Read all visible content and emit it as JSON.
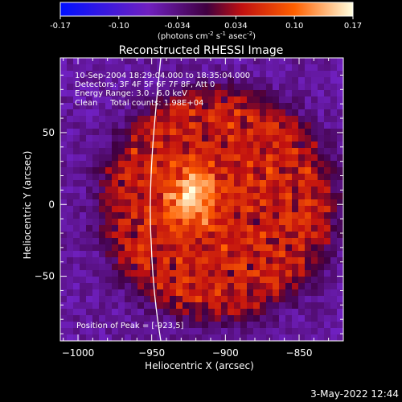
{
  "colorbar": {
    "ticks": [
      "-0.17",
      "-0.10",
      "-0.034",
      "0.034",
      "0.10",
      "0.17"
    ],
    "units_prefix": "(photons cm",
    "units_exp1": "-2",
    "units_mid1": " s",
    "units_exp2": "-1",
    "units_mid2": " asec",
    "units_exp3": "-2",
    "units_suffix": ")",
    "range": [
      -0.17,
      0.17
    ]
  },
  "chart_data": {
    "type": "heatmap",
    "title": "Reconstructed RHESSI Image",
    "xlabel": "Heliocentric X (arcsec)",
    "ylabel": "Heliocentric Y (arcsec)",
    "x_ticks": [
      "-1000",
      "-950",
      "-900",
      "-850"
    ],
    "x_tick_values": [
      -1000,
      -950,
      -900,
      -850
    ],
    "y_ticks": [
      "50",
      "0",
      "-50"
    ],
    "y_tick_values": [
      50,
      0,
      -50
    ],
    "xlim": [
      -1012,
      -820
    ],
    "ylim": [
      -95,
      102
    ],
    "peak": {
      "x": -923,
      "y": 5,
      "value": 0.17
    },
    "disk_diameter_arcsec": 160,
    "annotations": [
      "10-Sep-2004 18:29:04.000 to 18:35:04.000",
      "Detectors: 3F 4F 5F 6F 7F 8F, Att 0",
      "Energy Range: 3.0 - 6.0 keV",
      "Clean     Total counts: 1.98E+04"
    ],
    "peak_label": "Position of Peak = [-923,5]"
  },
  "footer": {
    "timestamp": "3-May-2022 12:44"
  }
}
